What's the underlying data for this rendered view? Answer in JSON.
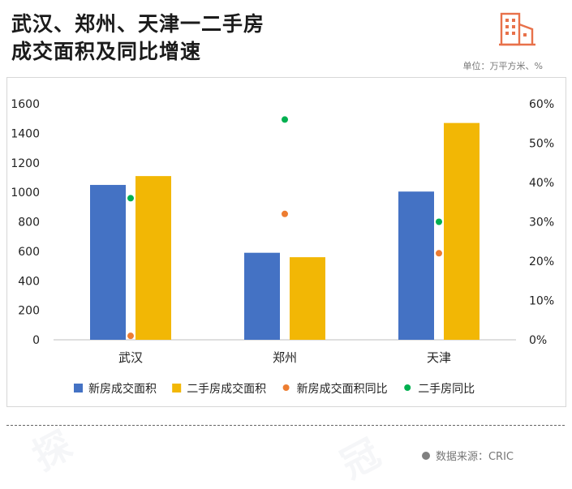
{
  "header": {
    "title_line1": "武汉、郑州、天津一二手房",
    "title_line2": "成交面积及同比增速",
    "unit_note": "单位：万平方米、%"
  },
  "footer": {
    "source": "数据来源：CRIC"
  },
  "colors": {
    "new_area": "#4472c4",
    "second_area": "#f2b705",
    "new_yoy": "#ed7d31",
    "second_yoy": "#00b050",
    "logo": "#e8714a"
  },
  "chart_data": {
    "type": "bar",
    "categories": [
      "武汉",
      "郑州",
      "天津"
    ],
    "series": [
      {
        "name": "新房成交面积",
        "axis": "left",
        "kind": "bar",
        "values": [
          1050,
          590,
          1005
        ]
      },
      {
        "name": "二手房成交面积",
        "axis": "left",
        "kind": "bar",
        "values": [
          1110,
          560,
          1470
        ]
      },
      {
        "name": "新房成交面积同比",
        "axis": "right",
        "kind": "scatter",
        "values": [
          1,
          32,
          22
        ]
      },
      {
        "name": "二手房同比",
        "axis": "right",
        "kind": "scatter",
        "values": [
          36,
          56,
          30
        ]
      }
    ],
    "y_left": {
      "min": 0,
      "max": 1600,
      "ticks": [
        "0",
        "200",
        "400",
        "600",
        "800",
        "1000",
        "1200",
        "1400",
        "1600"
      ]
    },
    "y_right": {
      "min": 0,
      "max": 60,
      "ticks": [
        "0%",
        "10%",
        "20%",
        "30%",
        "40%",
        "50%",
        "60%"
      ]
    },
    "legend_position": "bottom",
    "grid": false
  }
}
